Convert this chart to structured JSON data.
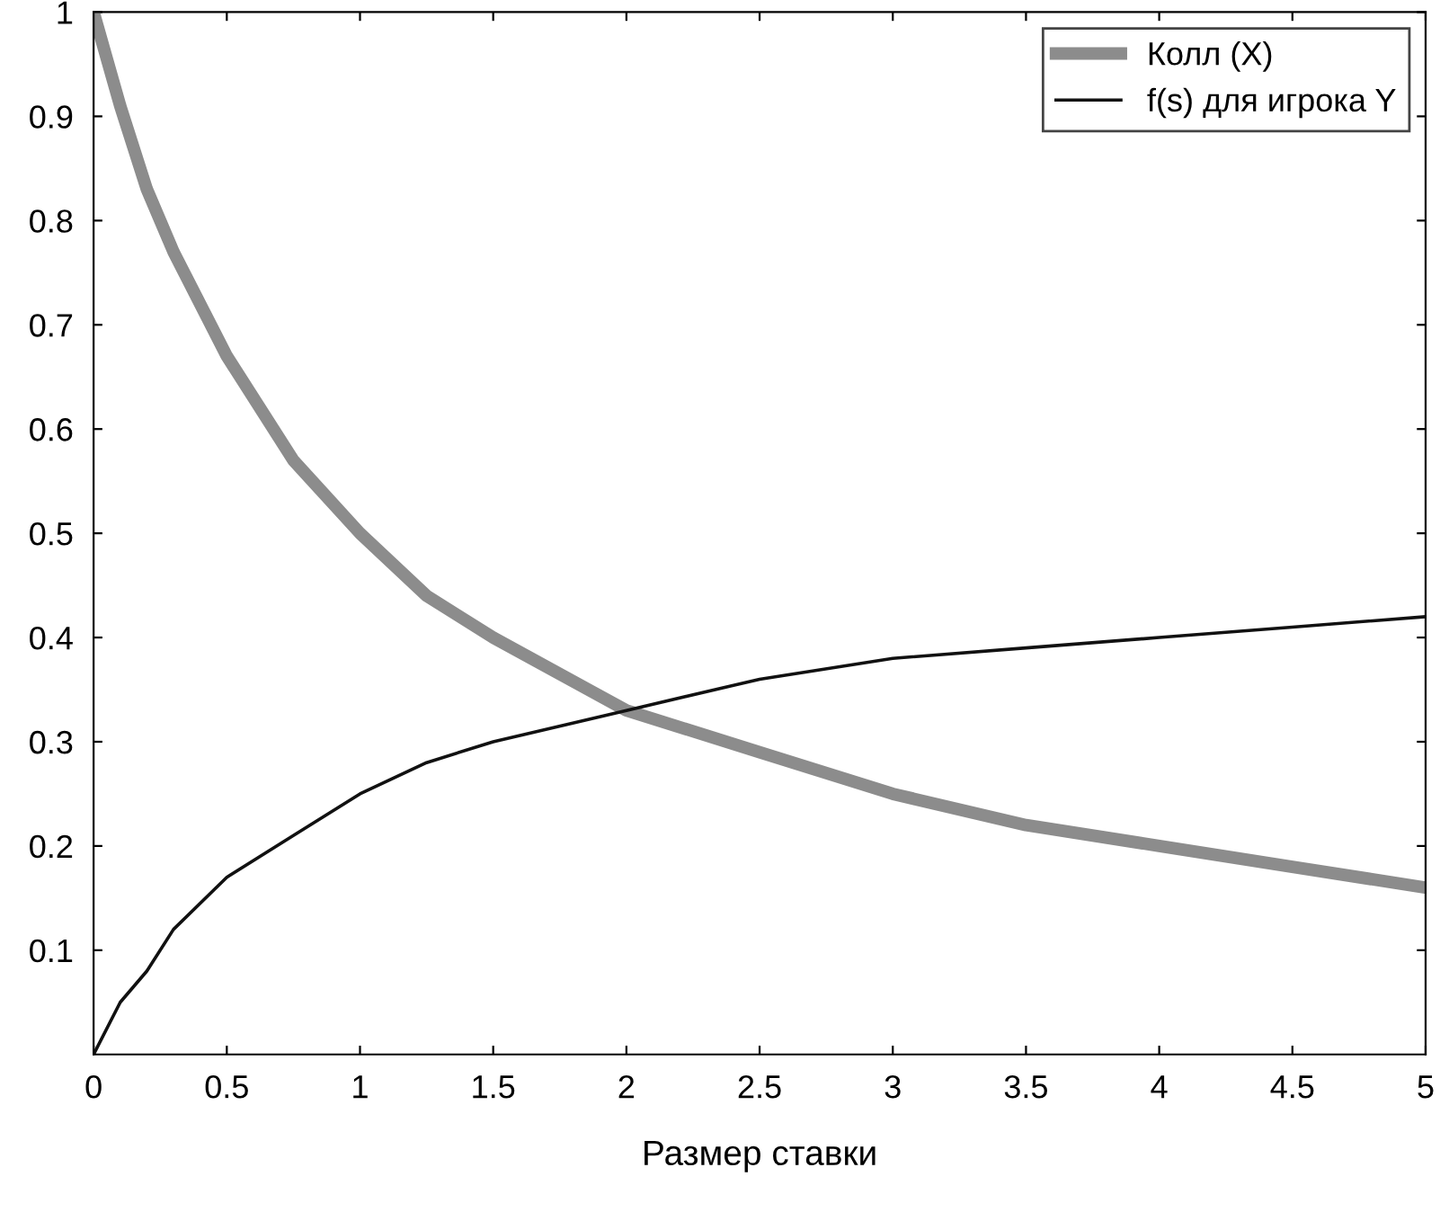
{
  "chart_data": {
    "type": "line",
    "xlabel": "Размер ставки",
    "x": [
      0,
      0.1,
      0.2,
      0.3,
      0.5,
      0.75,
      1,
      1.25,
      1.5,
      2,
      2.5,
      3,
      3.5,
      4,
      4.5,
      5
    ],
    "series": [
      {
        "name": "Колл (X)",
        "color": "#8c8c8c",
        "values": [
          1,
          0.91,
          0.83,
          0.77,
          0.67,
          0.57,
          0.5,
          0.44,
          0.4,
          0.33,
          0.29,
          0.25,
          0.22,
          0.2,
          0.18,
          0.16
        ]
      },
      {
        "name": "f(s) для игрока Y",
        "color": "#111111",
        "values": [
          0,
          0.05,
          0.08,
          0.12,
          0.17,
          0.21,
          0.25,
          0.28,
          0.3,
          0.33,
          0.36,
          0.38,
          0.39,
          0.4,
          0.41,
          0.42
        ]
      }
    ],
    "xlim": [
      0,
      5
    ],
    "ylim": [
      0,
      1
    ],
    "xticks": [
      0,
      0.5,
      1,
      1.5,
      2,
      2.5,
      3,
      3.5,
      4,
      4.5,
      5
    ],
    "yticks": [
      0.1,
      0.2,
      0.3,
      0.4,
      0.5,
      0.6,
      0.7,
      0.8,
      0.9,
      1
    ],
    "legend": "top right",
    "grid": false,
    "marker": "none",
    "line_style": "solid"
  }
}
